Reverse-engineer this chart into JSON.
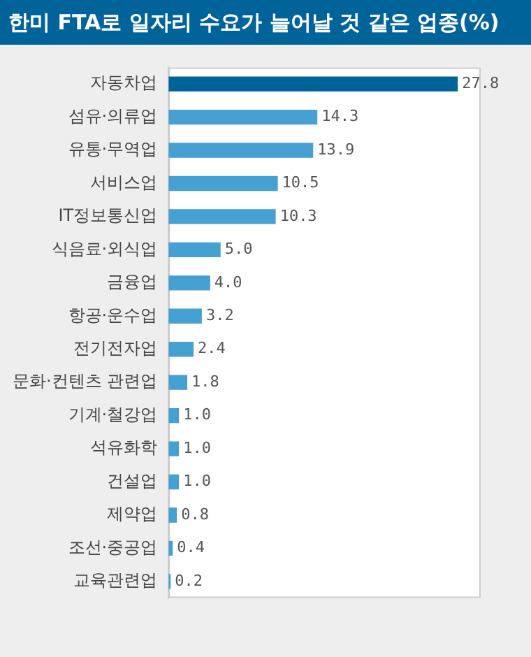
{
  "chart_data": {
    "type": "bar",
    "orientation": "horizontal",
    "title": "한미 FTA로 일자리 수요가 늘어날 것 같은 업종(%)",
    "categories": [
      "자동차업",
      "섬유·의류업",
      "유통·무역업",
      "서비스업",
      "IT정보통신업",
      "식음료·외식업",
      "금융업",
      "항공·운수업",
      "전기전자업",
      "문화·컨텐츠 관련업",
      "기계·철강업",
      "석유화학",
      "건설업",
      "제약업",
      "조선·중공업",
      "교육관련업"
    ],
    "values": [
      27.8,
      14.3,
      13.9,
      10.5,
      10.3,
      5.0,
      4.0,
      3.2,
      2.4,
      1.8,
      1.0,
      1.0,
      1.0,
      0.8,
      0.4,
      0.2
    ],
    "value_labels": [
      "27.8",
      "14.3",
      "13.9",
      "10.5",
      "10.3",
      "5.0",
      "4.0",
      "3.2",
      "2.4",
      "1.8",
      "1.0",
      "1.0",
      "1.0",
      "0.8",
      "0.4",
      "0.2"
    ],
    "colors": [
      "#00649a",
      "#46a0d2",
      "#46a0d2",
      "#46a0d2",
      "#46a0d2",
      "#46a0d2",
      "#46a0d2",
      "#46a0d2",
      "#46a0d2",
      "#46a0d2",
      "#46a0d2",
      "#46a0d2",
      "#46a0d2",
      "#46a0d2",
      "#46a0d2",
      "#46a0d2"
    ],
    "legend": false
  }
}
